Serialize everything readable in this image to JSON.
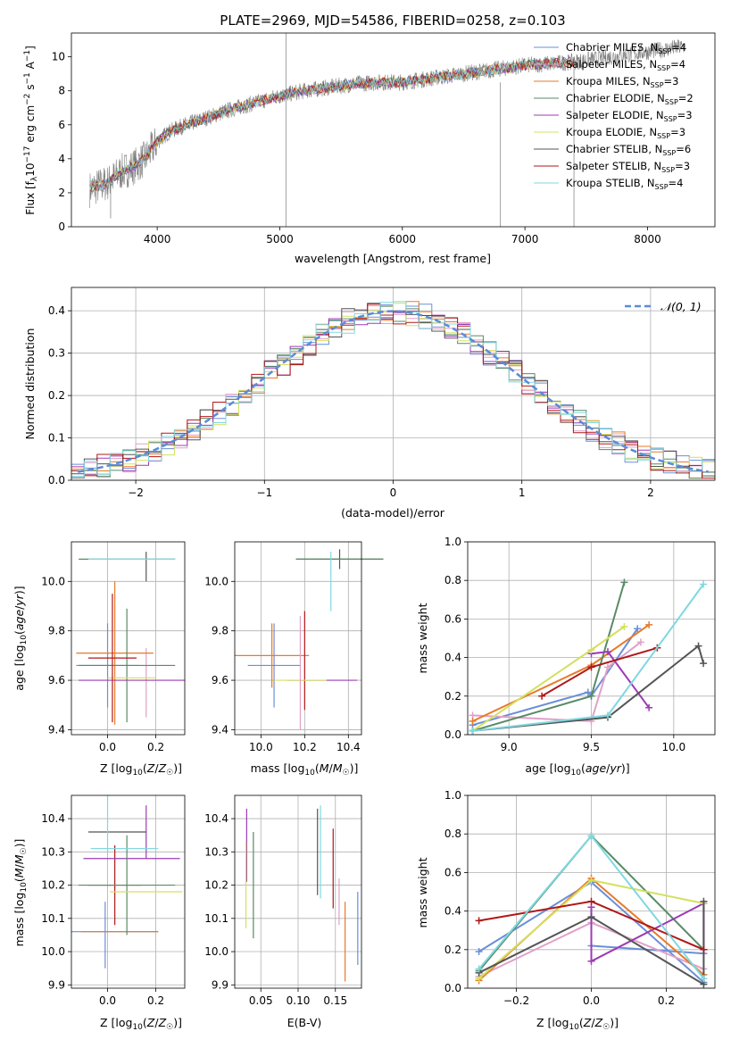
{
  "chart_data": [
    {
      "type": "line",
      "title": "PLATE=2969, MJD=54586, FIBERID=0258, z=0.103",
      "xlabel": "wavelength [Angstrom, rest frame]",
      "ylabel": "Flux [f_λ10^-17 erg cm^-2 s^-1 A^-1]",
      "xlim": [
        3300,
        8550
      ],
      "ylim": [
        0,
        11.4
      ],
      "xticks": [
        4000,
        5000,
        6000,
        7000,
        8000
      ],
      "yticks": [
        0,
        2,
        4,
        6,
        8,
        10
      ],
      "legend_position": "right",
      "series": [
        {
          "name": "Chabrier MILES, N_SSP=4",
          "color": "#6a8fd8"
        },
        {
          "name": "Salpeter MILES, N_SSP=4",
          "color": "#e0a0c8"
        },
        {
          "name": "Kroupa MILES, N_SSP=3",
          "color": "#e87a2a"
        },
        {
          "name": "Chabrier ELODIE, N_SSP=2",
          "color": "#5a8a66"
        },
        {
          "name": "Salpeter ELODIE, N_SSP=3",
          "color": "#9c3bb5"
        },
        {
          "name": "Kroupa ELODIE, N_SSP=3",
          "color": "#d4e060"
        },
        {
          "name": "Chabrier STELIB, N_SSP=6",
          "color": "#555555"
        },
        {
          "name": "Salpeter STELIB, N_SSP=3",
          "color": "#b01818"
        },
        {
          "name": "Kroupa STELIB, N_SSP=4",
          "color": "#7fd8e0"
        }
      ],
      "continuum": {
        "x": [
          3450,
          3600,
          3700,
          3800,
          3900,
          4000,
          4100,
          4200,
          4400,
          4600,
          4800,
          5000,
          5200,
          5400,
          5600,
          5800,
          6000,
          6200,
          6400,
          6600,
          6800,
          7000,
          7200,
          7400,
          7600,
          7800,
          8000,
          8200,
          8300
        ],
        "y": [
          2.2,
          2.6,
          3.2,
          3.5,
          4.0,
          5.0,
          5.6,
          5.9,
          6.4,
          6.9,
          7.3,
          7.7,
          8.0,
          8.2,
          8.4,
          8.5,
          8.5,
          8.7,
          8.9,
          9.1,
          9.3,
          9.5,
          9.6,
          9.7,
          9.9,
          10.1,
          10.3,
          10.5,
          10.6
        ]
      }
    },
    {
      "type": "histogram",
      "xlabel": "(data-model)/error",
      "ylabel": "Normed distribution",
      "xlim": [
        -2.5,
        2.5
      ],
      "ylim": [
        0,
        0.455
      ],
      "xticks": [
        -2,
        -1,
        0,
        1,
        2
      ],
      "yticks": [
        0.0,
        0.1,
        0.2,
        0.3,
        0.4
      ],
      "reference_curve": {
        "name": "𝒩(0, 1)",
        "color": "#5b8bd8",
        "style": "dashed"
      },
      "bin_edges_range": [
        -2.5,
        2.5
      ],
      "n_bins": 50
    },
    {
      "type": "scatter",
      "xlabel": "Z [log10(Z/Z☉)]",
      "ylabel": "age [log10(age/yr)]",
      "xlim": [
        -0.15,
        0.32
      ],
      "ylim": [
        9.38,
        10.16
      ],
      "xticks": [
        0.0,
        0.2
      ],
      "yticks": [
        9.4,
        9.6,
        9.8,
        10.0
      ],
      "points": [
        {
          "x": 0.0,
          "y": 9.66,
          "xerr": 0.13,
          "yerr": 0.17,
          "series": 0
        },
        {
          "x": 0.16,
          "y": 9.59,
          "xerr": 0.0,
          "yerr": 0.14,
          "series": 1
        },
        {
          "x": 0.03,
          "y": 9.71,
          "xerr": 0.16,
          "yerr": 0.29,
          "series": 2
        },
        {
          "x": 0.08,
          "y": 10.09,
          "xerr": 0.2,
          "yerr": 0.0,
          "series": 3
        },
        {
          "x": 0.08,
          "y": 9.66,
          "xerr": 0.2,
          "yerr": 0.23,
          "series": 3
        },
        {
          "x": 0.1,
          "y": 9.6,
          "xerr": 0.22,
          "yerr": 0.0,
          "series": 4
        },
        {
          "x": 0.1,
          "y": 9.61,
          "xerr": 0.1,
          "yerr": 0.0,
          "series": 5
        },
        {
          "x": 0.16,
          "y": 10.06,
          "xerr": 0.0,
          "yerr": 0.06,
          "series": 6
        },
        {
          "x": 0.02,
          "y": 9.69,
          "xerr": 0.1,
          "yerr": 0.26,
          "series": 7
        },
        {
          "x": 0.1,
          "y": 10.09,
          "xerr": 0.18,
          "yerr": 0.0,
          "series": 8
        }
      ]
    },
    {
      "type": "scatter",
      "xlabel": "mass [log10(M/M☉)]",
      "ylabel": "",
      "xlim": [
        9.88,
        10.46
      ],
      "ylim": [
        9.38,
        10.16
      ],
      "xticks": [
        10.0,
        10.2,
        10.4
      ],
      "yticks": [
        9.4,
        9.6,
        9.8,
        10.0
      ],
      "points": [
        {
          "x": 10.06,
          "y": 9.66,
          "xerr": 0.12,
          "yerr": 0.17,
          "series": 0
        },
        {
          "x": 10.28,
          "y": 9.6,
          "xerr": 0.16,
          "yerr": 0.0,
          "series": 4
        },
        {
          "x": 10.05,
          "y": 9.7,
          "xerr": 0.17,
          "yerr": 0.13,
          "series": 2
        },
        {
          "x": 10.2,
          "y": 9.68,
          "xerr": 0.0,
          "yerr": 0.2,
          "series": 7
        },
        {
          "x": 10.36,
          "y": 10.09,
          "xerr": 0.2,
          "yerr": 0.04,
          "series": 6
        },
        {
          "x": 10.36,
          "y": 10.09,
          "xerr": 0.2,
          "yerr": 0.0,
          "series": 3
        },
        {
          "x": 10.32,
          "y": 10.0,
          "xerr": 0.0,
          "yerr": 0.12,
          "series": 8
        },
        {
          "x": 10.18,
          "y": 9.6,
          "xerr": 0.12,
          "yerr": 0.0,
          "series": 5
        },
        {
          "x": 10.18,
          "y": 9.63,
          "xerr": 0.0,
          "yerr": 0.23,
          "series": 1
        }
      ]
    },
    {
      "type": "line",
      "xlabel": "age [log10(age/yr)]",
      "ylabel": "mass weight",
      "xlim": [
        8.75,
        10.25
      ],
      "ylim": [
        0,
        1.0
      ],
      "xticks": [
        9.0,
        9.5,
        10.0
      ],
      "yticks": [
        0.0,
        0.2,
        0.4,
        0.6,
        0.8,
        1.0
      ],
      "series": [
        {
          "color": "#6a8fd8",
          "x": [
            8.78,
            9.48,
            9.5,
            9.78
          ],
          "y": [
            0.05,
            0.22,
            0.2,
            0.55
          ]
        },
        {
          "color": "#e0a0c8",
          "x": [
            8.78,
            9.5,
            9.6,
            9.8
          ],
          "y": [
            0.1,
            0.07,
            0.35,
            0.48
          ]
        },
        {
          "color": "#e87a2a",
          "x": [
            8.78,
            9.5,
            9.85
          ],
          "y": [
            0.07,
            0.36,
            0.57
          ]
        },
        {
          "color": "#5a8a66",
          "x": [
            8.78,
            9.5,
            9.7
          ],
          "y": [
            0.02,
            0.2,
            0.79
          ]
        },
        {
          "color": "#9c3bb5",
          "x": [
            9.5,
            9.6,
            9.85
          ],
          "y": [
            0.42,
            0.43,
            0.14
          ]
        },
        {
          "color": "#d4e060",
          "x": [
            8.78,
            9.5,
            9.7
          ],
          "y": [
            0.02,
            0.44,
            0.56
          ]
        },
        {
          "color": "#555555",
          "x": [
            8.78,
            9.6,
            10.15,
            10.18
          ],
          "y": [
            0.02,
            0.09,
            0.46,
            0.37
          ]
        },
        {
          "color": "#b01818",
          "x": [
            9.2,
            9.5,
            9.9
          ],
          "y": [
            0.2,
            0.35,
            0.45
          ]
        },
        {
          "color": "#7fd8e0",
          "x": [
            8.78,
            9.6,
            10.18
          ],
          "y": [
            0.02,
            0.1,
            0.78
          ]
        }
      ]
    },
    {
      "type": "scatter",
      "xlabel": "Z [log10(Z/Z☉)]",
      "ylabel": "mass [log10(M/M☉)]",
      "xlim": [
        -0.15,
        0.32
      ],
      "ylim": [
        9.89,
        10.47
      ],
      "xticks": [
        0.0,
        0.2
      ],
      "yticks": [
        9.9,
        10.0,
        10.1,
        10.2,
        10.3,
        10.4
      ],
      "points": [
        {
          "x": 0.03,
          "y": 10.06,
          "xerr": 0.18,
          "yerr": 0.0,
          "series": 0
        },
        {
          "x": -0.01,
          "y": 10.05,
          "xerr": 0.0,
          "yerr": 0.1,
          "series": 0
        },
        {
          "x": 0.05,
          "y": 10.06,
          "xerr": 0.16,
          "yerr": 0.0,
          "series": 2
        },
        {
          "x": 0.03,
          "y": 10.2,
          "xerr": 0.11,
          "yerr": 0.12,
          "series": 7
        },
        {
          "x": 0.1,
          "y": 10.28,
          "xerr": 0.2,
          "yerr": 0.0,
          "series": 4
        },
        {
          "x": 0.16,
          "y": 10.36,
          "xerr": 0.0,
          "yerr": 0.08,
          "series": 4
        },
        {
          "x": 0.08,
          "y": 10.2,
          "xerr": 0.2,
          "yerr": 0.15,
          "series": 3
        },
        {
          "x": 0.16,
          "y": 10.18,
          "xerr": 0.15,
          "yerr": 0.0,
          "series": 5
        },
        {
          "x": 0.04,
          "y": 10.36,
          "xerr": 0.12,
          "yerr": 0.0,
          "series": 6
        },
        {
          "x": 0.07,
          "y": 10.31,
          "xerr": 0.14,
          "yerr": 0.0,
          "series": 8
        },
        {
          "x": 0.0,
          "y": 10.38,
          "xerr": 0.0,
          "yerr": 0.09,
          "series": 8
        }
      ]
    },
    {
      "type": "scatter",
      "xlabel": "E(B-V)",
      "ylabel": "",
      "xlim": [
        0.015,
        0.185
      ],
      "ylim": [
        9.89,
        10.47
      ],
      "xticks": [
        0.05,
        0.1,
        0.15
      ],
      "yticks": [
        9.9,
        10.0,
        10.1,
        10.2,
        10.3,
        10.4
      ],
      "points": [
        {
          "x": 0.031,
          "y": 10.32,
          "yerr": 0.11,
          "series": 4
        },
        {
          "x": 0.03,
          "y": 10.2,
          "yerr": 0.13,
          "series": 5
        },
        {
          "x": 0.04,
          "y": 10.2,
          "yerr": 0.16,
          "series": 3
        },
        {
          "x": 0.126,
          "y": 10.3,
          "yerr": 0.13,
          "series": 6
        },
        {
          "x": 0.13,
          "y": 10.3,
          "yerr": 0.14,
          "series": 8
        },
        {
          "x": 0.147,
          "y": 10.25,
          "yerr": 0.12,
          "series": 7
        },
        {
          "x": 0.155,
          "y": 10.15,
          "yerr": 0.07,
          "series": 1
        },
        {
          "x": 0.163,
          "y": 10.03,
          "yerr": 0.12,
          "series": 2
        },
        {
          "x": 0.18,
          "y": 10.07,
          "yerr": 0.11,
          "series": 0
        }
      ]
    },
    {
      "type": "line",
      "xlabel": "Z [log10(Z/Z☉)]",
      "ylabel": "mass weight",
      "xlim": [
        -0.33,
        0.33
      ],
      "ylim": [
        0,
        1.0
      ],
      "xticks": [
        -0.2,
        0.0,
        0.2
      ],
      "yticks": [
        0.0,
        0.2,
        0.4,
        0.6,
        0.8,
        1.0
      ],
      "series": [
        {
          "color": "#6a8fd8",
          "x": [
            -0.3,
            0.0,
            0.3
          ],
          "y": [
            0.19,
            0.55,
            0.03
          ]
        },
        {
          "color": "#6a8fd8",
          "x": [
            0.0,
            0.3
          ],
          "y": [
            0.22,
            0.18
          ]
        },
        {
          "color": "#e0a0c8",
          "x": [
            -0.3,
            0.0,
            0.3
          ],
          "y": [
            0.06,
            0.34,
            0.1
          ]
        },
        {
          "color": "#e87a2a",
          "x": [
            -0.3,
            0.0,
            0.3
          ],
          "y": [
            0.04,
            0.57,
            0.07
          ]
        },
        {
          "color": "#5a8a66",
          "x": [
            -0.3,
            0.0,
            0.3
          ],
          "y": [
            0.09,
            0.79,
            0.2
          ]
        },
        {
          "color": "#9c3bb5",
          "x": [
            0.0,
            0.0,
            0.3,
            0.3
          ],
          "y": [
            0.42,
            0.14,
            0.44,
            0.2
          ]
        },
        {
          "color": "#d4e060",
          "x": [
            -0.3,
            0.0,
            0.3
          ],
          "y": [
            0.05,
            0.56,
            0.44
          ]
        },
        {
          "color": "#555555",
          "x": [
            -0.3,
            0.0,
            0.3,
            0.3
          ],
          "y": [
            0.08,
            0.37,
            0.02,
            0.45
          ]
        },
        {
          "color": "#b01818",
          "x": [
            -0.3,
            0.0,
            0.3
          ],
          "y": [
            0.35,
            0.45,
            0.2
          ]
        },
        {
          "color": "#7fd8e0",
          "x": [
            -0.3,
            0.0,
            0.3
          ],
          "y": [
            0.1,
            0.79,
            0.05
          ]
        }
      ]
    }
  ]
}
